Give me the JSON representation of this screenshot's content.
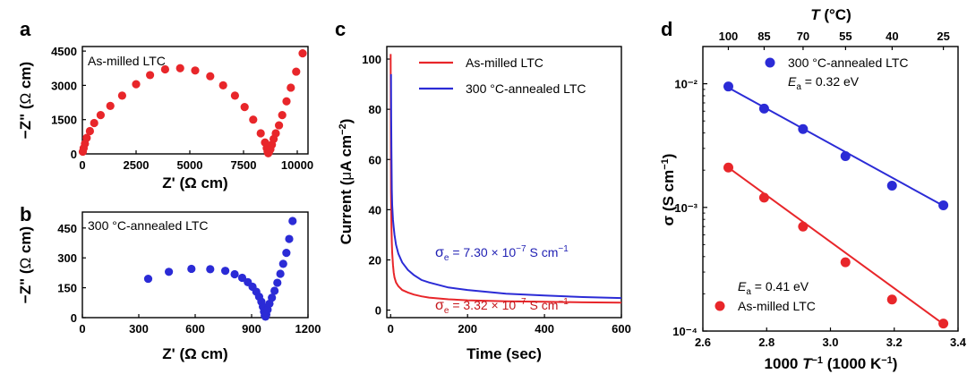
{
  "colors": {
    "red": "#e8262a",
    "blue": "#2b2bd6",
    "dark_red": "#c4161b",
    "dark_blue": "#1f1fb3"
  },
  "chart_data": [
    {
      "panel": "a",
      "type": "scatter",
      "legend_text": "As-milled LTC",
      "xlabel": "Z' (Ω cm)",
      "ylabel": "−Z\" (Ω cm)",
      "xlim": [
        0,
        10500
      ],
      "ylim": [
        0,
        4700
      ],
      "xticks": [
        0,
        2500,
        5000,
        7500,
        10000
      ],
      "yticks": [
        0,
        1500,
        3000,
        4500
      ],
      "xtick_labels": [
        "0",
        "2500",
        "5000",
        "7500",
        "10000"
      ],
      "ytick_labels": [
        "0",
        "1500",
        "3000",
        "4500"
      ],
      "series": [
        {
          "name": "As-milled LTC",
          "color": "red",
          "x": [
            20,
            60,
            120,
            200,
            350,
            550,
            850,
            1300,
            1850,
            2500,
            3150,
            3850,
            4550,
            5250,
            5950,
            6550,
            7100,
            7550,
            7950,
            8300,
            8500,
            8580,
            8620,
            8650,
            8680,
            8750,
            8820,
            8900,
            9000,
            9150,
            9300,
            9500,
            9700,
            9950,
            10250
          ],
          "y": [
            100,
            250,
            450,
            700,
            1000,
            1350,
            1700,
            2100,
            2550,
            3050,
            3450,
            3700,
            3750,
            3650,
            3400,
            3000,
            2550,
            2050,
            1500,
            900,
            500,
            250,
            100,
            30,
            80,
            200,
            400,
            650,
            900,
            1250,
            1700,
            2300,
            2900,
            3600,
            4400
          ]
        }
      ]
    },
    {
      "panel": "b",
      "type": "scatter",
      "legend_text": "300 °C-annealed LTC",
      "xlabel": "Z' (Ω cm)",
      "ylabel": "−Z\" (Ω cm)",
      "xlim": [
        0,
        1200
      ],
      "ylim": [
        0,
        530
      ],
      "xticks": [
        0,
        300,
        600,
        900,
        1200
      ],
      "yticks": [
        0,
        150,
        300,
        450
      ],
      "xtick_labels": [
        "0",
        "300",
        "600",
        "900",
        "1200"
      ],
      "ytick_labels": [
        "0",
        "150",
        "300",
        "450"
      ],
      "series": [
        {
          "name": "300 °C-annealed LTC",
          "color": "blue",
          "x": [
            350,
            460,
            580,
            680,
            760,
            810,
            850,
            880,
            905,
            925,
            940,
            952,
            960,
            966,
            970,
            974,
            978,
            985,
            995,
            1008,
            1022,
            1037,
            1053,
            1068,
            1085,
            1100,
            1118
          ],
          "y": [
            195,
            230,
            245,
            243,
            235,
            218,
            200,
            178,
            155,
            130,
            105,
            80,
            55,
            30,
            10,
            5,
            15,
            40,
            70,
            100,
            135,
            175,
            220,
            270,
            325,
            395,
            485
          ]
        }
      ]
    },
    {
      "panel": "c",
      "type": "line",
      "xlabel": "Time (sec)",
      "ylabel": "Current (μA cm⁻²)",
      "xlim": [
        -10,
        600
      ],
      "ylim": [
        -3,
        105
      ],
      "xticks": [
        0,
        200,
        400,
        600
      ],
      "yticks": [
        0,
        20,
        40,
        60,
        80,
        100
      ],
      "xtick_labels": [
        "0",
        "200",
        "400",
        "600"
      ],
      "ytick_labels": [
        "0",
        "20",
        "40",
        "60",
        "80",
        "100"
      ],
      "series": [
        {
          "name": "As-milled LTC",
          "color": "red",
          "x": [
            0,
            0.5,
            1,
            2,
            3,
            4,
            6,
            8,
            10,
            14,
            20,
            30,
            45,
            60,
            80,
            100,
            150,
            200,
            300,
            400,
            500,
            600
          ],
          "y": [
            102,
            70,
            47,
            33,
            27,
            23,
            18,
            15,
            13,
            11,
            9.5,
            8,
            7,
            6.2,
            5.5,
            5,
            4.3,
            3.9,
            3.5,
            3.3,
            3.1,
            3.0
          ]
        },
        {
          "name": "300 °C-annealed LTC",
          "color": "blue",
          "x": [
            1,
            1.5,
            2,
            3,
            4,
            6,
            8,
            10,
            14,
            20,
            30,
            45,
            60,
            80,
            100,
            150,
            200,
            300,
            400,
            500,
            600
          ],
          "y": [
            94,
            77,
            63,
            48,
            42,
            36,
            33,
            30,
            26,
            22.5,
            19,
            16,
            14,
            12,
            11,
            9,
            8,
            6.5,
            5.8,
            5.2,
            4.8
          ]
        }
      ],
      "annotations": {
        "blue_sigma": "σe = 7.30 × 10⁻⁷ S cm⁻¹",
        "red_sigma": "σe = 3.32 × 10⁻⁷ S cm⁻¹"
      }
    },
    {
      "panel": "d",
      "type": "scatter",
      "xlabel": "1000 T⁻¹ (1000 K⁻¹)",
      "ylabel": "σ (S cm⁻¹)",
      "top_xlabel": "T (°C)",
      "xscale": "linear",
      "yscale": "log",
      "xlim": [
        2.6,
        3.4
      ],
      "ylim": [
        0.0001,
        0.02
      ],
      "xticks": [
        2.6,
        2.8,
        3.0,
        3.2,
        3.4
      ],
      "xtick_labels": [
        "2.6",
        "2.8",
        "3.0",
        "3.2",
        "3.4"
      ],
      "yticks": [
        0.0001,
        0.001,
        0.01
      ],
      "ytick_labels": [
        "10⁻⁴",
        "10⁻³",
        "10⁻²"
      ],
      "top_ticks_celsius": [
        100,
        85,
        70,
        55,
        40,
        25
      ],
      "top_tick_labels": [
        "100",
        "85",
        "70",
        "55",
        "40",
        "25"
      ],
      "series": [
        {
          "name": "300 °C-annealed LTC",
          "color": "blue",
          "Ea": "Ea = 0.32 eV",
          "x": [
            2.68,
            2.792,
            2.914,
            3.047,
            3.193,
            3.354
          ],
          "y": [
            0.0095,
            0.0063,
            0.0043,
            0.0026,
            0.0015,
            0.00104
          ],
          "fit_x": [
            2.68,
            3.354
          ],
          "fit_y": [
            0.0093,
            0.00103
          ]
        },
        {
          "name": "As-milled LTC",
          "color": "red",
          "Ea": "Ea = 0.41 eV",
          "x": [
            2.68,
            2.792,
            2.914,
            3.047,
            3.193,
            3.354
          ],
          "y": [
            0.0021,
            0.0012,
            0.0007,
            0.00036,
            0.00018,
            0.000115
          ],
          "fit_x": [
            2.68,
            3.354
          ],
          "fit_y": [
            0.0021,
            0.000114
          ]
        }
      ]
    }
  ],
  "labels": {
    "a": "a",
    "b": "b",
    "c": "c",
    "d": "d",
    "a_legend": "As-milled LTC",
    "a_xlabel": "Z' (Ω cm)",
    "b_legend": "300 °C-annealed LTC",
    "b_xlabel": "Z' (Ω cm)",
    "c_leg1": "As-milled LTC",
    "c_leg2": "300 °C-annealed LTC",
    "c_xlabel": "Time (sec)",
    "d_top_T": "T",
    "d_top_unit": " (°C)",
    "d_leg_blue": "300 °C-annealed LTC",
    "d_ea_blue_E": "E",
    "d_ea_blue_sub": "a",
    "d_ea_blue_val": " = 0.32 eV",
    "d_ea_red_E": "E",
    "d_ea_red_sub": "a",
    "d_ea_red_val": " = 0.41 eV",
    "d_leg_red": "As-milled LTC",
    "d_xlabel_pre": "1000 ",
    "d_xlabel_T": "T",
    "d_xlabel_exp": "−1",
    "d_xlabel_post": " (1000 K",
    "d_xlabel_exp2": "−1",
    "d_xlabel_end": ")",
    "sig_sym": "σ",
    "sig_sub": "e",
    "c_sig_blue_val": " = 7.30 × 10",
    "c_sig_blue_exp": "−7",
    "c_sig_blue_unit": " S cm",
    "c_sig_blue_unit_exp": "−1",
    "c_sig_red_val": " = 3.32 × 10",
    "c_sig_red_exp": "−7",
    "c_sig_red_unit": " S cm",
    "c_sig_red_unit_exp": "−1",
    "ylab_ab_pre": "−Z\" (",
    "ylab_ab_omega": "Ω",
    "ylab_ab_post": " cm)",
    "c_ylab_pre": "Current (",
    "c_ylab_mu": "μ",
    "c_ylab_mid": "A cm",
    "c_ylab_exp": "−2",
    "c_ylab_end": ")",
    "d_ylab_pre": "σ (S cm",
    "d_ylab_exp": "−1",
    "d_ylab_end": ")"
  }
}
